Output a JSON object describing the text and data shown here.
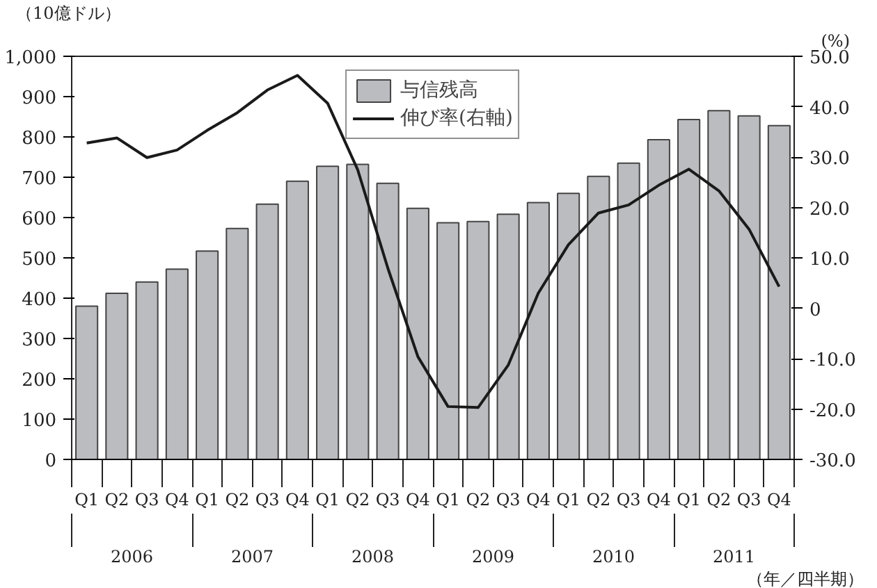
{
  "chart_data": {
    "type": "bar",
    "ylabel": "（10億ドル）",
    "y2label": "(%)",
    "xlabel": "（年／四半期）",
    "categories": [
      "Q1",
      "Q2",
      "Q3",
      "Q4",
      "Q1",
      "Q2",
      "Q3",
      "Q4",
      "Q1",
      "Q2",
      "Q3",
      "Q4",
      "Q1",
      "Q2",
      "Q3",
      "Q4",
      "Q1",
      "Q2",
      "Q3",
      "Q4",
      "Q1",
      "Q2",
      "Q3",
      "Q4"
    ],
    "annotations": [
      "2006",
      "2007",
      "2008",
      "2009",
      "2010",
      "2011"
    ],
    "series": [
      {
        "name": "与信残高",
        "color": "#bbbcc0",
        "values": [
          380,
          412,
          440,
          472,
          517,
          573,
          633,
          690,
          727,
          732,
          685,
          623,
          587,
          590,
          608,
          637,
          660,
          702,
          735,
          793,
          843,
          865,
          852,
          828
        ]
      },
      {
        "name": "伸び率(右軸)",
        "type": "line",
        "axis": "y2",
        "color": "#1a1a1a",
        "values": [
          32.8,
          33.8,
          29.9,
          31.4,
          35.3,
          38.8,
          43.3,
          46.2,
          40.7,
          27.5,
          8.0,
          -9.6,
          -19.5,
          -19.7,
          -11.3,
          3.0,
          12.6,
          18.9,
          20.5,
          24.4,
          27.6,
          23.3,
          15.7,
          4.3
        ]
      }
    ],
    "ylim": [
      0,
      1000
    ],
    "yticks": [
      0,
      {
        "value": 100,
        "label": "100"
      },
      200,
      300,
      400,
      500,
      600,
      700,
      800,
      900,
      {
        "value": 1000,
        "label": "1,000"
      }
    ],
    "y2lim": [
      -30,
      50
    ],
    "y2ticks": [
      {
        "value": -30,
        "label": "-30.0"
      },
      {
        "value": -20,
        "label": "-20.0"
      },
      {
        "value": -10,
        "label": "-10.0"
      },
      0,
      {
        "value": 10,
        "label": "10.0"
      },
      {
        "value": 20,
        "label": "20.0"
      },
      {
        "value": 30,
        "label": "30.0"
      },
      {
        "value": 40,
        "label": "40.0"
      },
      {
        "value": 50,
        "label": "50.0"
      }
    ],
    "legend": "top",
    "grid": false
  }
}
